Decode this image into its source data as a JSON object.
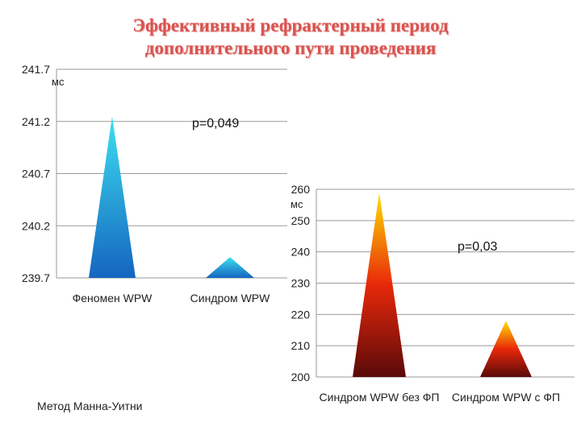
{
  "page": {
    "title_line1": "Эффективный рефрактерный период",
    "title_line2": "дополнительного пути проведения",
    "method_note": "Метод Манна-Уитни"
  },
  "chart_data": [
    {
      "type": "bar",
      "shape": "pyramid",
      "categories": [
        "Феномен WPW",
        "Синдром WPW"
      ],
      "values": [
        241.25,
        239.9
      ],
      "ylim": [
        239.7,
        241.7
      ],
      "yticks": [
        "241.7",
        "241.2",
        "240.7",
        "240.2",
        "239.7"
      ],
      "ylabel": "мс",
      "annotation": "p=0,049",
      "colors": {
        "top": "#3de0f0",
        "bottom": "#1565c0"
      },
      "grid": true
    },
    {
      "type": "bar",
      "shape": "pyramid",
      "categories": [
        "Синдром WPW без ФП",
        "Синдром WPW с ФП"
      ],
      "values": [
        259,
        218
      ],
      "ylim": [
        200,
        260
      ],
      "yticks": [
        "260",
        "250",
        "240",
        "230",
        "220",
        "210",
        "200"
      ],
      "ylabel": "мс",
      "annotation": "p=0,03",
      "colors": {
        "top": "#ffe000",
        "middle": "#e8280a",
        "bottom": "#5a0a0a"
      },
      "grid": true
    }
  ]
}
